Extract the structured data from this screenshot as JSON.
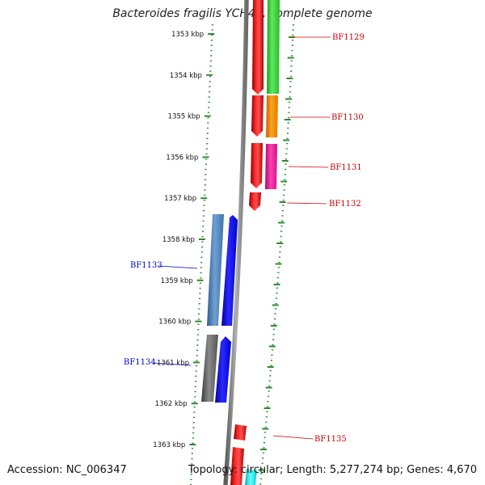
{
  "title": "Bacteroides fragilis YCH46, complete genome",
  "footer": {
    "accession": "Accession: NC_006347",
    "summary": "Topology: circular; Length: 5,277,274 bp; Genes: 4,670"
  },
  "colors": {
    "ruler_dots": "#2e8b2e",
    "backbone": "#808080",
    "forward_label": "#cc0000",
    "reverse_label": "#0000cc"
  },
  "ruler": {
    "ticks": [
      "1353 kbp",
      "1354 kbp",
      "1355 kbp",
      "1356 kbp",
      "1357 kbp",
      "1358 kbp",
      "1359 kbp",
      "1360 kbp",
      "1361 kbp",
      "1362 kbp",
      "1363 kbp"
    ]
  },
  "genes": [
    {
      "id": "BF1129",
      "label": "BF1129",
      "strand": "forward"
    },
    {
      "id": "BF1130",
      "label": "BF1130",
      "strand": "forward"
    },
    {
      "id": "BF1131",
      "label": "BF1131",
      "strand": "forward"
    },
    {
      "id": "BF1132",
      "label": "BF1132",
      "strand": "forward"
    },
    {
      "id": "BF1133",
      "label": "BF1133",
      "strand": "reverse"
    },
    {
      "id": "BF1134",
      "label": "BF1134",
      "strand": "reverse"
    },
    {
      "id": "BF1135",
      "label": "BF1135",
      "strand": "forward"
    }
  ]
}
